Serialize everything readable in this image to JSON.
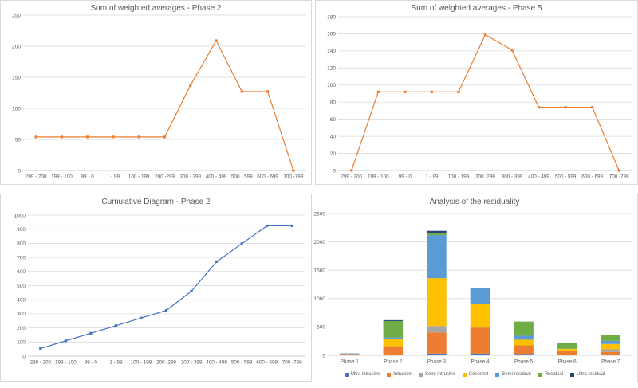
{
  "styles": {
    "grid_color": "#d9d9d9",
    "axis_color": "#bfbfbf",
    "text_color": "#595959",
    "orange_series": "#ED7D31",
    "blue_series": "#4472C4"
  },
  "charts": [
    {
      "id": "weighted-averages-phase2",
      "title": "Sum of weighted averages - Phase 2",
      "type": "line",
      "color": "#ED7D31",
      "categories": [
        "299 - 200",
        "199 - 100",
        "99 - 0",
        "1 - 99",
        "100 - 199",
        "200 -299",
        "300 - 399",
        "400 - 499",
        "500 - 599",
        "600 - 699",
        "700 -799"
      ],
      "values": [
        54,
        54,
        54,
        54,
        54,
        54,
        137,
        209,
        127,
        127,
        0
      ],
      "y_ticks": [
        0,
        50,
        100,
        150,
        200,
        250
      ],
      "ylim": [
        0,
        250
      ],
      "grid": true,
      "legend": "none"
    },
    {
      "id": "weighted-averages-phase5",
      "title": "Sum of weighted averages - Phase 5",
      "type": "line",
      "color": "#ED7D31",
      "categories": [
        "299 - 200",
        "199 - 100",
        "99 - 0",
        "1 - 99",
        "100 - 199",
        "200 -299",
        "300 - 399",
        "400 - 499",
        "500 - 599",
        "600 - 699",
        "700 -799"
      ],
      "values": [
        0,
        92,
        92,
        92,
        92,
        159,
        141,
        74,
        74,
        74,
        0
      ],
      "y_ticks": [
        0,
        20,
        40,
        60,
        80,
        100,
        120,
        140,
        160,
        180
      ],
      "ylim": [
        0,
        180
      ],
      "grid": true,
      "legend": "none"
    },
    {
      "id": "cumulative-diagram-phase2",
      "title": "Cumulative Diagram - Phase 2",
      "type": "line",
      "color": "#4472C4",
      "categories": [
        "299 - 200",
        "199 - 100",
        "99 - 0",
        "1 - 99",
        "100 - 199",
        "200 -299",
        "300 - 399",
        "400 - 499",
        "500 - 599",
        "600 - 699",
        "700 -799"
      ],
      "values": [
        54,
        108,
        162,
        216,
        270,
        324,
        461,
        670,
        797,
        924,
        924
      ],
      "y_ticks": [
        0,
        100,
        200,
        300,
        400,
        500,
        600,
        700,
        800,
        900,
        1000
      ],
      "ylim": [
        0,
        1000
      ],
      "grid": true,
      "legend": "none"
    },
    {
      "id": "analysis-residuality",
      "title": "Analysis of the residuality",
      "type": "stacked-bar",
      "categories": [
        "Phase 1",
        "Phase 2",
        "Phase 3",
        "Phase 4",
        "Phase 5",
        "Phase 6",
        "Phase 7"
      ],
      "series": [
        {
          "name": "Ultra intrusive",
          "color": "#4472C4",
          "values": [
            0,
            0,
            30,
            30,
            25,
            5,
            0
          ]
        },
        {
          "name": "Intrusive",
          "color": "#ED7D31",
          "values": [
            25,
            160,
            375,
            460,
            150,
            70,
            60
          ]
        },
        {
          "name": "Semi intrusive",
          "color": "#A5A5A5",
          "values": [
            0,
            0,
            110,
            0,
            0,
            0,
            45
          ]
        },
        {
          "name": "Coherent",
          "color": "#FFC000",
          "values": [
            0,
            130,
            845,
            410,
            100,
            40,
            95
          ]
        },
        {
          "name": "Semi residual",
          "color": "#5B9BD5",
          "values": [
            10,
            25,
            760,
            280,
            70,
            0,
            55
          ]
        },
        {
          "name": "Residual",
          "color": "#70AD47",
          "values": [
            0,
            290,
            30,
            0,
            250,
            105,
            110
          ]
        },
        {
          "name": "Ultra residual",
          "color": "#264478",
          "values": [
            0,
            15,
            45,
            0,
            0,
            0,
            0
          ]
        }
      ],
      "y_ticks": [
        0,
        500,
        1000,
        1500,
        2000,
        2500
      ],
      "ylim": [
        0,
        2500
      ],
      "grid": true,
      "legend": "bottom"
    }
  ]
}
